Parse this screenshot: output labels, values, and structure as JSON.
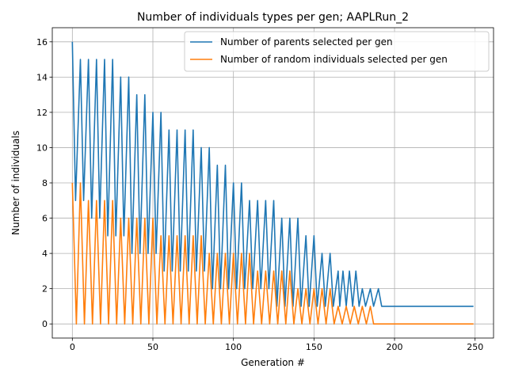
{
  "chart_data": {
    "type": "line",
    "title": "Number of individuals types per gen; AAPLRun_2",
    "xlabel": "Generation #",
    "ylabel": "Number of individuals",
    "xlim": [
      -12.45,
      261.45
    ],
    "ylim": [
      -0.8,
      16.8
    ],
    "xticks": [
      0,
      50,
      100,
      150,
      200,
      250
    ],
    "yticks": [
      0,
      2,
      4,
      6,
      8,
      10,
      12,
      14,
      16
    ],
    "grid": true,
    "legend_position": "upper-right",
    "x": {
      "start": 0,
      "end": 249,
      "step": 1
    },
    "series": [
      {
        "name": "Number of parents selected per gen",
        "color": "#1f77b4",
        "peaks": [
          {
            "x": 0,
            "y": 16
          },
          {
            "x": 5,
            "y": 15
          },
          {
            "x": 10,
            "y": 15
          },
          {
            "x": 15,
            "y": 15
          },
          {
            "x": 20,
            "y": 15
          },
          {
            "x": 25,
            "y": 15
          },
          {
            "x": 30,
            "y": 14
          },
          {
            "x": 35,
            "y": 14
          },
          {
            "x": 40,
            "y": 13
          },
          {
            "x": 45,
            "y": 13
          },
          {
            "x": 50,
            "y": 12
          },
          {
            "x": 55,
            "y": 12
          },
          {
            "x": 60,
            "y": 11
          },
          {
            "x": 65,
            "y": 11
          },
          {
            "x": 70,
            "y": 11
          },
          {
            "x": 75,
            "y": 11
          },
          {
            "x": 80,
            "y": 10
          },
          {
            "x": 85,
            "y": 10
          },
          {
            "x": 90,
            "y": 9
          },
          {
            "x": 95,
            "y": 9
          },
          {
            "x": 100,
            "y": 8
          },
          {
            "x": 105,
            "y": 8
          },
          {
            "x": 110,
            "y": 7
          },
          {
            "x": 115,
            "y": 7
          },
          {
            "x": 120,
            "y": 7
          },
          {
            "x": 125,
            "y": 7
          },
          {
            "x": 130,
            "y": 6
          },
          {
            "x": 135,
            "y": 6
          },
          {
            "x": 140,
            "y": 6
          },
          {
            "x": 145,
            "y": 5
          },
          {
            "x": 150,
            "y": 5
          },
          {
            "x": 155,
            "y": 4
          },
          {
            "x": 160,
            "y": 4
          },
          {
            "x": 165,
            "y": 3
          },
          {
            "x": 168,
            "y": 3
          },
          {
            "x": 172,
            "y": 3
          },
          {
            "x": 176,
            "y": 3
          },
          {
            "x": 180,
            "y": 2
          },
          {
            "x": 185,
            "y": 2
          },
          {
            "x": 190,
            "y": 2
          }
        ],
        "troughs": [
          {
            "x": 2,
            "y": 7
          },
          {
            "x": 7,
            "y": 7
          },
          {
            "x": 12,
            "y": 6
          },
          {
            "x": 17,
            "y": 6
          },
          {
            "x": 22,
            "y": 5
          },
          {
            "x": 27,
            "y": 5
          },
          {
            "x": 32,
            "y": 5
          },
          {
            "x": 37,
            "y": 4
          },
          {
            "x": 42,
            "y": 4
          },
          {
            "x": 47,
            "y": 4
          },
          {
            "x": 52,
            "y": 4
          },
          {
            "x": 57,
            "y": 3
          },
          {
            "x": 62,
            "y": 3
          },
          {
            "x": 67,
            "y": 3
          },
          {
            "x": 72,
            "y": 3
          },
          {
            "x": 77,
            "y": 3
          },
          {
            "x": 82,
            "y": 3
          },
          {
            "x": 87,
            "y": 2
          },
          {
            "x": 92,
            "y": 2
          },
          {
            "x": 97,
            "y": 2
          },
          {
            "x": 102,
            "y": 2
          },
          {
            "x": 107,
            "y": 2
          },
          {
            "x": 112,
            "y": 2
          },
          {
            "x": 117,
            "y": 2
          },
          {
            "x": 122,
            "y": 2
          },
          {
            "x": 127,
            "y": 1
          },
          {
            "x": 132,
            "y": 1
          },
          {
            "x": 137,
            "y": 1
          },
          {
            "x": 142,
            "y": 1
          },
          {
            "x": 147,
            "y": 1
          },
          {
            "x": 152,
            "y": 1
          },
          {
            "x": 157,
            "y": 1
          },
          {
            "x": 162,
            "y": 1
          },
          {
            "x": 166,
            "y": 1
          },
          {
            "x": 170,
            "y": 1
          },
          {
            "x": 174,
            "y": 1
          },
          {
            "x": 178,
            "y": 1
          },
          {
            "x": 182,
            "y": 1
          },
          {
            "x": 187,
            "y": 1
          }
        ],
        "tail": {
          "from_x": 192,
          "to_x": 249,
          "y": 1
        }
      },
      {
        "name": "Number of random individuals selected per gen",
        "color": "#ff7f0e",
        "peaks": [
          {
            "x": 0,
            "y": 8
          },
          {
            "x": 5,
            "y": 8
          },
          {
            "x": 10,
            "y": 7
          },
          {
            "x": 15,
            "y": 7
          },
          {
            "x": 20,
            "y": 7
          },
          {
            "x": 25,
            "y": 7
          },
          {
            "x": 30,
            "y": 6
          },
          {
            "x": 35,
            "y": 6
          },
          {
            "x": 40,
            "y": 6
          },
          {
            "x": 45,
            "y": 6
          },
          {
            "x": 50,
            "y": 6
          },
          {
            "x": 55,
            "y": 5
          },
          {
            "x": 60,
            "y": 5
          },
          {
            "x": 65,
            "y": 5
          },
          {
            "x": 70,
            "y": 5
          },
          {
            "x": 75,
            "y": 5
          },
          {
            "x": 80,
            "y": 5
          },
          {
            "x": 85,
            "y": 4
          },
          {
            "x": 90,
            "y": 4
          },
          {
            "x": 95,
            "y": 4
          },
          {
            "x": 100,
            "y": 4
          },
          {
            "x": 105,
            "y": 4
          },
          {
            "x": 110,
            "y": 4
          },
          {
            "x": 115,
            "y": 3
          },
          {
            "x": 120,
            "y": 3
          },
          {
            "x": 125,
            "y": 3
          },
          {
            "x": 130,
            "y": 3
          },
          {
            "x": 135,
            "y": 3
          },
          {
            "x": 140,
            "y": 2
          },
          {
            "x": 145,
            "y": 2
          },
          {
            "x": 150,
            "y": 2
          },
          {
            "x": 155,
            "y": 2
          },
          {
            "x": 160,
            "y": 2
          },
          {
            "x": 165,
            "y": 1
          },
          {
            "x": 170,
            "y": 1
          },
          {
            "x": 175,
            "y": 1
          },
          {
            "x": 180,
            "y": 1
          },
          {
            "x": 185,
            "y": 1
          }
        ],
        "trough_y": 0,
        "tail": {
          "from_x": 187,
          "to_x": 249,
          "y": 0
        }
      }
    ]
  }
}
